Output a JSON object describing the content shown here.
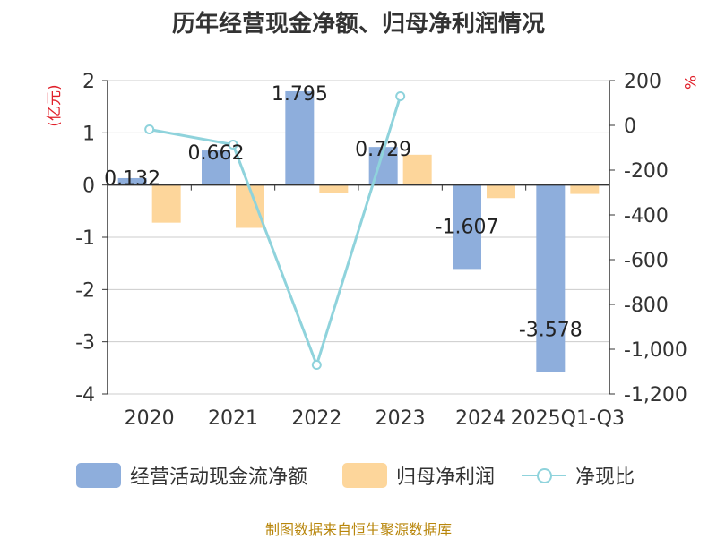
{
  "chart_data": {
    "type": "bar",
    "title": "历年经营现金净额、归母净利润情况",
    "categories": [
      "2020",
      "2021",
      "2022",
      "2023",
      "2024",
      "2025Q1-Q3"
    ],
    "ylabel": "(亿元)",
    "y2label": "%",
    "ylim": [
      -4,
      2
    ],
    "yticks": [
      2,
      1,
      0,
      -1,
      -2,
      -3,
      -4
    ],
    "y2lim": [
      -1200,
      200
    ],
    "y2ticks": [
      "200",
      "0",
      "-200",
      "-400",
      "-600",
      "-800",
      "-1,000",
      "-1,200"
    ],
    "y2tick_values": [
      200,
      0,
      -200,
      -400,
      -600,
      -800,
      -1000,
      -1200
    ],
    "series": [
      {
        "name": "经营活动现金流净额",
        "type": "bar",
        "axis": "left",
        "color": "#8eaedc",
        "values": [
          0.132,
          0.662,
          1.795,
          0.729,
          -1.607,
          -3.578
        ],
        "labels": [
          "0.132",
          "0.662",
          "1.795",
          "0.729",
          "-1.607",
          "-3.578"
        ]
      },
      {
        "name": "归母净利润",
        "type": "bar",
        "axis": "left",
        "color": "#fdd69b",
        "values": [
          -0.72,
          -0.82,
          -0.15,
          0.58,
          -0.25,
          -0.17
        ]
      },
      {
        "name": "净现比",
        "type": "line",
        "axis": "right",
        "color": "#8fd3dc",
        "values": [
          -18,
          -86,
          -1070,
          130,
          null,
          null
        ]
      }
    ]
  },
  "legend": {
    "item1": "经营活动现金流净额",
    "item2": "归母净利润",
    "item3": "净现比"
  },
  "source": "制图数据来自恒生聚源数据库"
}
